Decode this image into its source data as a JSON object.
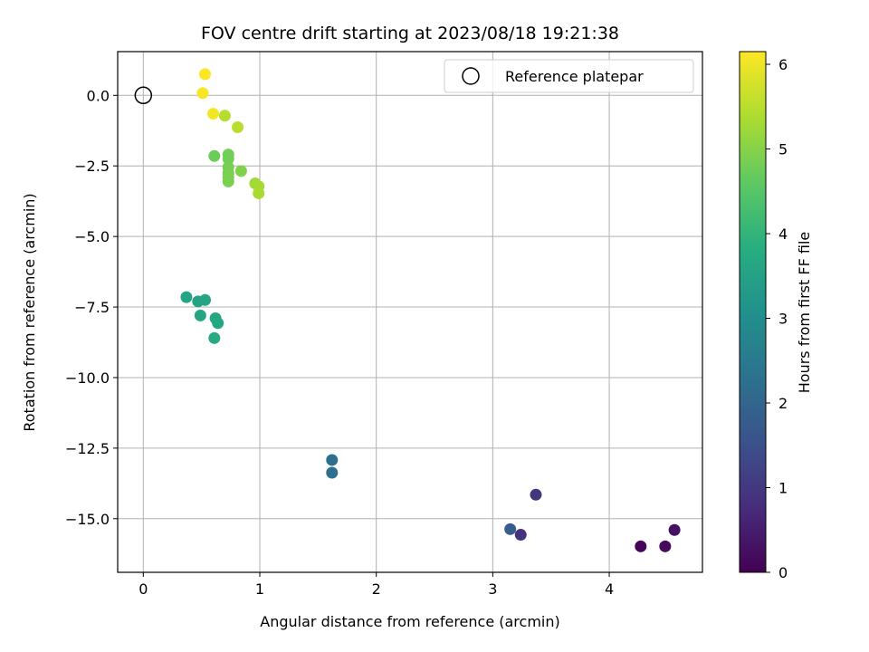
{
  "chart_data": {
    "type": "scatter",
    "title": "FOV centre drift starting at 2023/08/18 19:21:38",
    "xlabel": "Angular distance from reference (arcmin)",
    "ylabel": "Rotation from reference (arcmin)",
    "xlim": [
      -0.22,
      4.8
    ],
    "ylim": [
      -16.9,
      1.55
    ],
    "xticks": [
      0,
      1,
      2,
      3,
      4
    ],
    "yticks": [
      0.0,
      -2.5,
      -5.0,
      -7.5,
      -10.0,
      -12.5,
      -15.0
    ],
    "ytick_labels": [
      "0.0",
      "−2.5",
      "−5.0",
      "−7.5",
      "−10.0",
      "−12.5",
      "−15.0"
    ],
    "grid": true,
    "legend": {
      "position": "top-right",
      "entries": [
        "Reference platepar"
      ]
    },
    "reference_point": {
      "x": 0,
      "y": 0,
      "label": "Reference platepar"
    },
    "colorbar": {
      "label": "Hours from first FF file",
      "range": [
        0,
        6.15
      ],
      "ticks": [
        0,
        1,
        2,
        3,
        4,
        5,
        6
      ],
      "colormap": "viridis"
    },
    "points": [
      {
        "x": 4.27,
        "y": -15.98,
        "c": 0.05
      },
      {
        "x": 4.48,
        "y": -15.98,
        "c": 0.15
      },
      {
        "x": 4.56,
        "y": -15.4,
        "c": 0.3
      },
      {
        "x": 3.24,
        "y": -15.57,
        "c": 0.85
      },
      {
        "x": 3.37,
        "y": -14.15,
        "c": 1.0
      },
      {
        "x": 3.15,
        "y": -15.37,
        "c": 1.8
      },
      {
        "x": 1.62,
        "y": -12.92,
        "c": 2.2
      },
      {
        "x": 1.62,
        "y": -13.37,
        "c": 2.2
      },
      {
        "x": 0.37,
        "y": -7.15,
        "c": 3.55
      },
      {
        "x": 0.47,
        "y": -7.3,
        "c": 3.55
      },
      {
        "x": 0.53,
        "y": -7.25,
        "c": 3.6
      },
      {
        "x": 0.49,
        "y": -7.8,
        "c": 3.6
      },
      {
        "x": 0.62,
        "y": -7.9,
        "c": 3.65
      },
      {
        "x": 0.64,
        "y": -8.07,
        "c": 3.65
      },
      {
        "x": 0.61,
        "y": -8.6,
        "c": 3.7
      },
      {
        "x": 0.61,
        "y": -2.15,
        "c": 4.75
      },
      {
        "x": 0.73,
        "y": -2.1,
        "c": 4.8
      },
      {
        "x": 0.73,
        "y": -2.25,
        "c": 4.8
      },
      {
        "x": 0.73,
        "y": -2.55,
        "c": 4.85
      },
      {
        "x": 0.73,
        "y": -2.75,
        "c": 4.85
      },
      {
        "x": 0.73,
        "y": -2.9,
        "c": 4.9
      },
      {
        "x": 0.73,
        "y": -3.05,
        "c": 4.9
      },
      {
        "x": 0.84,
        "y": -2.68,
        "c": 4.95
      },
      {
        "x": 0.96,
        "y": -3.12,
        "c": 5.25
      },
      {
        "x": 0.99,
        "y": -3.22,
        "c": 5.3
      },
      {
        "x": 0.99,
        "y": -3.47,
        "c": 5.35
      },
      {
        "x": 0.7,
        "y": -0.72,
        "c": 5.45
      },
      {
        "x": 0.81,
        "y": -1.13,
        "c": 5.5
      },
      {
        "x": 0.6,
        "y": -0.65,
        "c": 6.05
      },
      {
        "x": 0.51,
        "y": 0.08,
        "c": 6.1
      },
      {
        "x": 0.53,
        "y": 0.75,
        "c": 6.15
      }
    ]
  }
}
